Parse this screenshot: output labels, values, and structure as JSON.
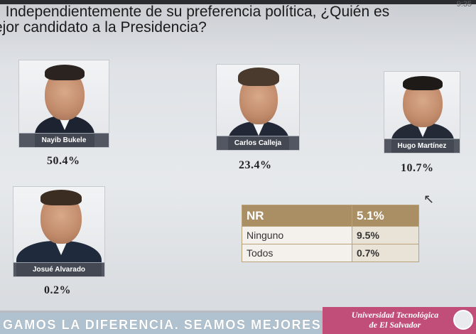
{
  "clock": "9:35",
  "question": {
    "line1": ". Independientemente de su preferencia política, ¿Quién es",
    "line2": "ejor candidato a la Presidencia?"
  },
  "candidates": [
    {
      "name": "Nayib Bukele",
      "percent": "50.4%"
    },
    {
      "name": "Carlos Calleja",
      "percent": "23.4%"
    },
    {
      "name": "Hugo Martínez",
      "percent": "10.7%"
    },
    {
      "name": "Josué Alvarado",
      "percent": "0.2%"
    }
  ],
  "nr_table": {
    "header": {
      "label": "NR",
      "value": "5.1%"
    },
    "rows": [
      {
        "label": "Ninguno",
        "value": "9.5%"
      },
      {
        "label": "Todos",
        "value": "0.7%"
      }
    ]
  },
  "footer": {
    "slogan": "GAMOS LA DIFERENCIA. SEAMOS MEJORES.",
    "university_line1": "Universidad Tecnológica",
    "university_line2": "de El Salvador"
  },
  "colors": {
    "table_header": "#aa8f65",
    "university_bg": "#c14e78",
    "slogan_bg": "#b0c2cf"
  }
}
